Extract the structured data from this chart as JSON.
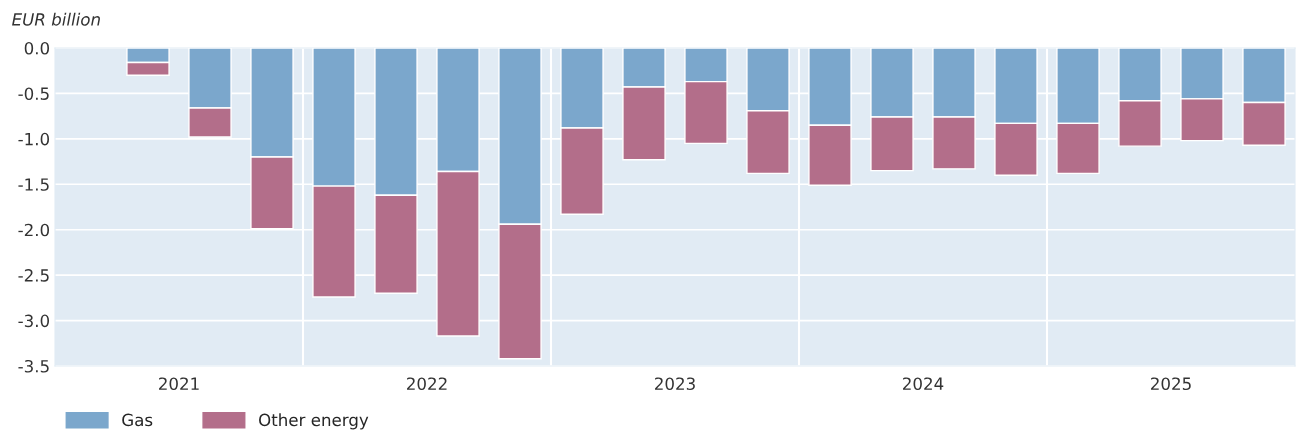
{
  "chart_data": {
    "type": "bar",
    "stacked": true,
    "ylabel": "EUR billion",
    "x": [
      2021.375,
      2021.625,
      2021.875,
      2022.125,
      2022.375,
      2022.625,
      2022.875,
      2023.125,
      2023.375,
      2023.625,
      2023.875,
      2024.125,
      2024.375,
      2024.625,
      2024.875,
      2025.125,
      2025.375,
      2025.625,
      2025.875
    ],
    "series": [
      {
        "name": "Gas",
        "color": "#7ba7cc",
        "values": [
          -0.16,
          -0.66,
          -1.2,
          -1.52,
          -1.62,
          -1.36,
          -1.94,
          -0.88,
          -0.43,
          -0.37,
          -0.69,
          -0.85,
          -0.76,
          -0.76,
          -0.83,
          -0.83,
          -0.58,
          -0.56,
          -0.6
        ]
      },
      {
        "name": "Other energy",
        "color": "#b36e8a",
        "values": [
          -0.14,
          -0.32,
          -0.79,
          -1.22,
          -1.08,
          -1.81,
          -1.48,
          -0.95,
          -0.8,
          -0.68,
          -0.69,
          -0.66,
          -0.59,
          -0.57,
          -0.57,
          -0.55,
          -0.5,
          -0.46,
          -0.47
        ]
      }
    ],
    "xlim": [
      2021,
      2026
    ],
    "xticks": [
      {
        "value": 2021.5,
        "label": "2021"
      },
      {
        "value": 2022.5,
        "label": "2022"
      },
      {
        "value": 2023.5,
        "label": "2023"
      },
      {
        "value": 2024.5,
        "label": "2024"
      },
      {
        "value": 2025.5,
        "label": "2025"
      }
    ],
    "ylim": [
      -3.5,
      0
    ],
    "yticks": [
      {
        "value": 0,
        "label": "0.0"
      },
      {
        "value": -0.5,
        "label": "-0.5"
      },
      {
        "value": -1.0,
        "label": "-1.0"
      },
      {
        "value": -1.5,
        "label": "-1.5"
      },
      {
        "value": -2.0,
        "label": "-2.0"
      },
      {
        "value": -2.5,
        "label": "-2.5"
      },
      {
        "value": -3.0,
        "label": "-3.0"
      },
      {
        "value": -3.5,
        "label": "-3.5"
      }
    ],
    "grid": "y",
    "ref_lines": [
      {
        "axis": "x",
        "value": 2022,
        "color": "#ffffff"
      },
      {
        "axis": "x",
        "value": 2023,
        "color": "#ffffff"
      },
      {
        "axis": "x",
        "value": 2024,
        "color": "#ffffff"
      },
      {
        "axis": "x",
        "value": 2025,
        "color": "#ffffff"
      }
    ],
    "legend": "bottom left"
  }
}
